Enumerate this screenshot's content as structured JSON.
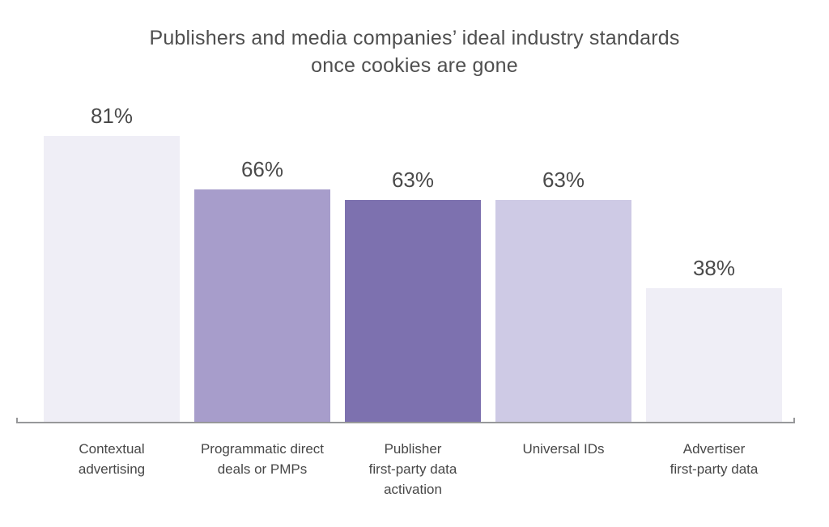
{
  "chart_data": {
    "type": "bar",
    "title": "Publishers and media companies’ ideal industry standards once cookies are gone",
    "title_lines": [
      "Publishers and media companies’ ideal industry standards",
      "once cookies are gone"
    ],
    "categories": [
      "Contextual advertising",
      "Programmatic direct deals or PMPs",
      "Publisher first-party data activation",
      "Universal IDs",
      "Advertiser first-party data"
    ],
    "category_lines": [
      [
        "Contextual",
        "advertising"
      ],
      [
        "Programmatic direct",
        "deals or PMPs"
      ],
      [
        "Publisher",
        "first-party data",
        "activation"
      ],
      [
        "Universal IDs"
      ],
      [
        "Advertiser",
        "first-party data"
      ]
    ],
    "values": [
      81,
      66,
      63,
      63,
      38
    ],
    "value_labels": [
      "81%",
      "66%",
      "63%",
      "63%",
      "38%"
    ],
    "unit": "%",
    "ylim": [
      0,
      100
    ],
    "bar_colors": [
      "#efeef6",
      "#a79dcb",
      "#7d71af",
      "#cecae5",
      "#efeef6"
    ],
    "axis_color": "#97989a",
    "title_color": "#4f4f4f",
    "value_label_color": "#4a4a4a",
    "category_label_color": "#474747",
    "grid": false,
    "legend": false,
    "xlabel": "",
    "ylabel": ""
  }
}
